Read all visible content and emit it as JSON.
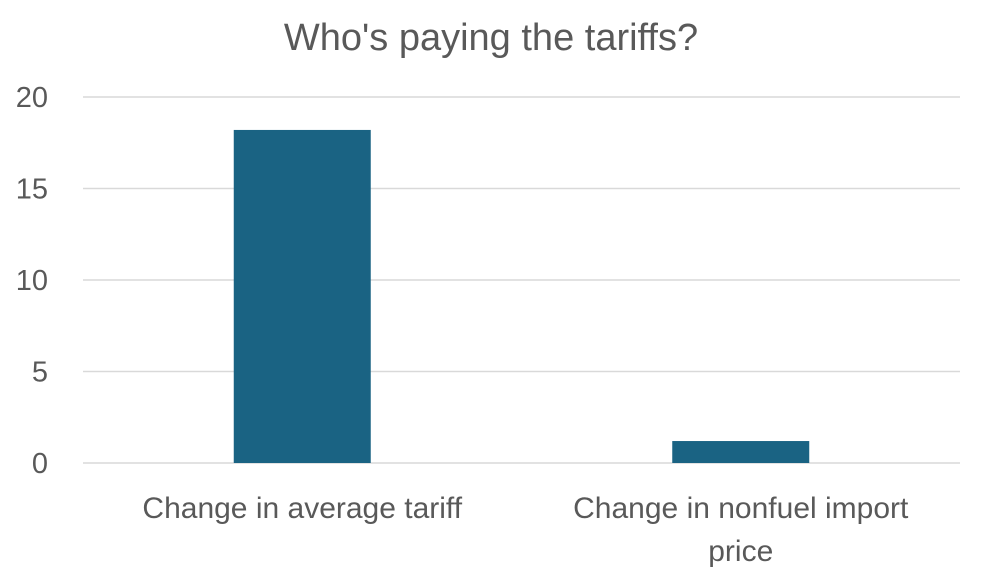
{
  "chart_data": {
    "type": "bar",
    "title": "Who's paying the tariffs?",
    "categories": [
      [
        "Change in average tariff"
      ],
      [
        "Change in nonfuel import",
        "price"
      ]
    ],
    "values": [
      18.2,
      1.2
    ],
    "xlabel": "",
    "ylabel": "",
    "ylim": [
      0,
      20
    ],
    "yticks": [
      "0",
      "5",
      "10",
      "15",
      "20"
    ],
    "grid": true,
    "legend": "none",
    "colors": {
      "bar": "#1a6383",
      "grid": "#d9d9d9",
      "text": "#595959"
    }
  }
}
